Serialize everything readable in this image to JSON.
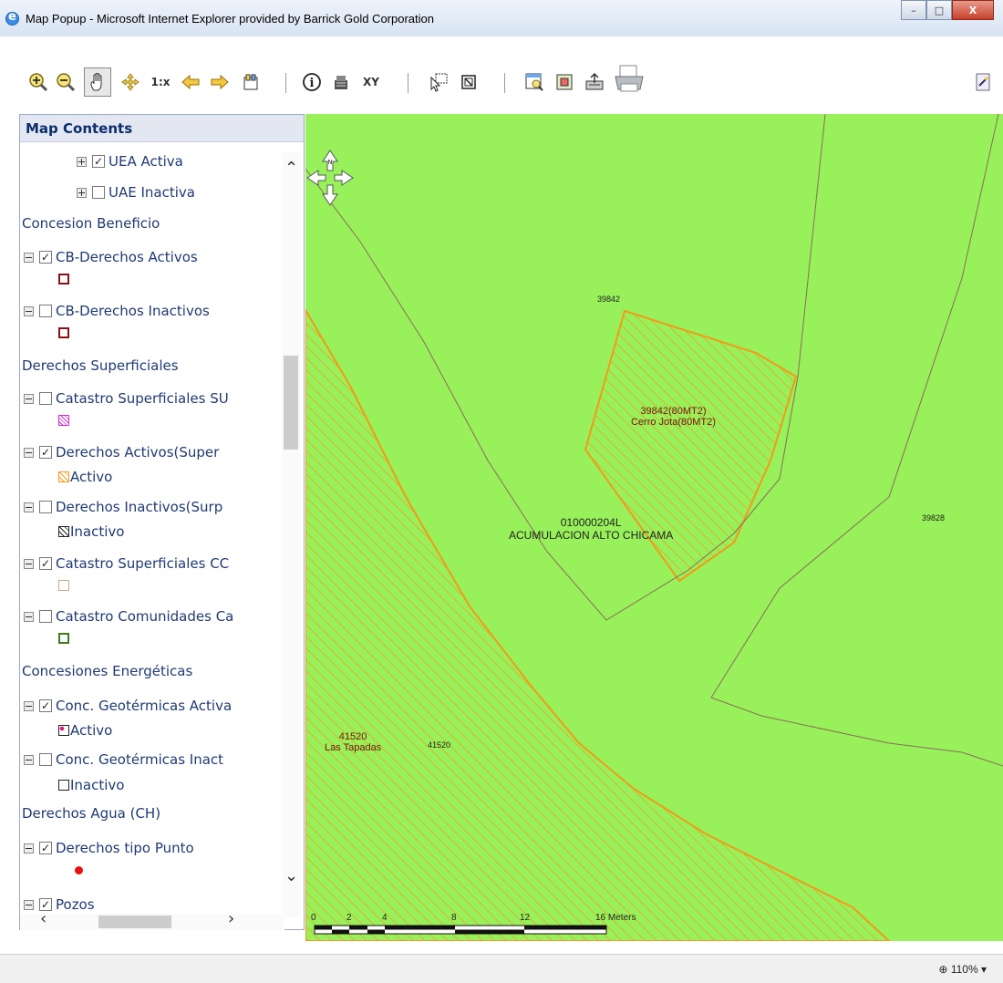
{
  "window": {
    "title": "Map Popup - Microsoft Internet Explorer provided by Barrick Gold Corporation",
    "min_label": "–",
    "max_label": "□",
    "close_label": "X"
  },
  "toolbar": {
    "icons": [
      "zoom-in-icon",
      "zoom-out-icon",
      "pan-hand-icon",
      "full-extent-icon",
      "zoom-1x-icon",
      "back-arrow-icon",
      "forward-arrow-icon",
      "legend-icon",
      "identify-icon",
      "measure-icon",
      "xy-icon",
      "select-icon",
      "clear-select-icon",
      "zoom-selection-icon",
      "overview-icon",
      "export-icon",
      "print-icon",
      "tools-icon"
    ],
    "zoom_1x_label": "1:x",
    "identify_label": "i",
    "xy_label": "XY"
  },
  "toc": {
    "header": "Map Contents",
    "uea_activa": "UEA Activa",
    "uae_inactiva": "UAE Inactiva",
    "group_concesion": "Concesion Beneficio",
    "cb_activos": "CB-Derechos Activos",
    "cb_inactivos": "CB-Derechos Inactivos",
    "group_superficiales": "Derechos Superficiales",
    "catastro_su": "Catastro Superficiales SU",
    "derechos_activos_sup": "Derechos Activos(Super",
    "activo_label": "Activo",
    "derechos_inactivos_sup": "Derechos Inactivos(Surp",
    "inactivo_label": "Inactivo",
    "catastro_cc": "Catastro Superficiales CC",
    "catastro_comunidades": "Catastro Comunidades Ca",
    "group_energeticas": "Concesiones Energéticas",
    "geo_activas": "Conc. Geotérmicas Activa",
    "geo_activo_label": "Activo",
    "geo_inactivas": "Conc. Geotérmicas Inact",
    "geo_inactivo_label": "Inactivo",
    "group_agua": "Derechos Agua (CH)",
    "derechos_punto": "Derechos tipo Punto",
    "pozos": "Pozos",
    "checkmark": "✓"
  },
  "map": {
    "label_39842_small": "39842",
    "label_39842_line1": "39842(80MT2)",
    "label_39842_line2": "Cerro Jota(80MT2)",
    "label_alto_line1": "010000204L",
    "label_alto_line2": "ACUMULACION ALTO CHICAMA",
    "label_39828": "39828",
    "label_41520_line1": "41520",
    "label_41520_line2": "Las Tapadas",
    "label_41520_small": "41520",
    "nav_north": "N",
    "scale_ticks": [
      "0",
      "2",
      "4",
      "8",
      "12",
      "16 Meters"
    ],
    "colors": {
      "land": "#98f05a",
      "orange": "#f39a1a",
      "boundary": "#8a6d5a"
    }
  },
  "status": {
    "zoom": "110%"
  }
}
